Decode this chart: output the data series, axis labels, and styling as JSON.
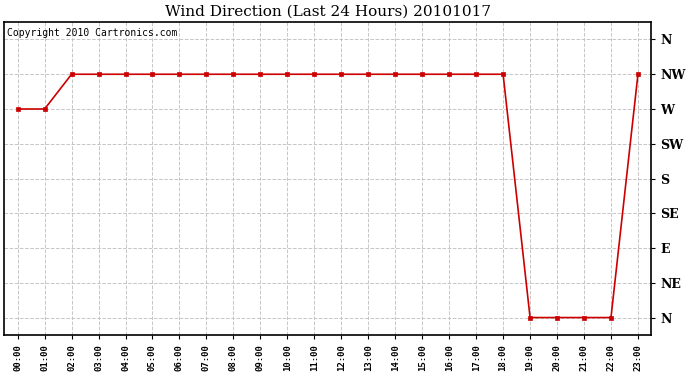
{
  "title": "Wind Direction (Last 24 Hours) 20101017",
  "copyright_text": "Copyright 2010 Cartronics.com",
  "background_color": "#ffffff",
  "line_color": "#cc0000",
  "marker": "s",
  "marker_size": 3,
  "x_labels": [
    "00:00",
    "01:00",
    "02:00",
    "03:00",
    "04:00",
    "05:00",
    "06:00",
    "07:00",
    "08:00",
    "09:00",
    "10:00",
    "11:00",
    "12:00",
    "13:00",
    "14:00",
    "15:00",
    "16:00",
    "17:00",
    "18:00",
    "19:00",
    "20:00",
    "21:00",
    "22:00",
    "23:00"
  ],
  "y_labels": [
    "N",
    "NE",
    "E",
    "SE",
    "S",
    "SW",
    "W",
    "NW",
    "N"
  ],
  "y_values": [
    0,
    1,
    2,
    3,
    4,
    5,
    6,
    7,
    8
  ],
  "data": [
    6,
    6,
    7,
    7,
    7,
    7,
    7,
    7,
    7,
    7,
    7,
    7,
    7,
    7,
    7,
    7,
    7,
    7,
    7,
    0,
    0,
    0,
    0,
    7
  ],
  "grid_color": "#c0c0c0",
  "grid_linestyle": "--",
  "title_fontsize": 11,
  "copyright_fontsize": 7,
  "xlim": [
    -0.5,
    23.5
  ],
  "ylim": [
    -0.5,
    8.5
  ]
}
